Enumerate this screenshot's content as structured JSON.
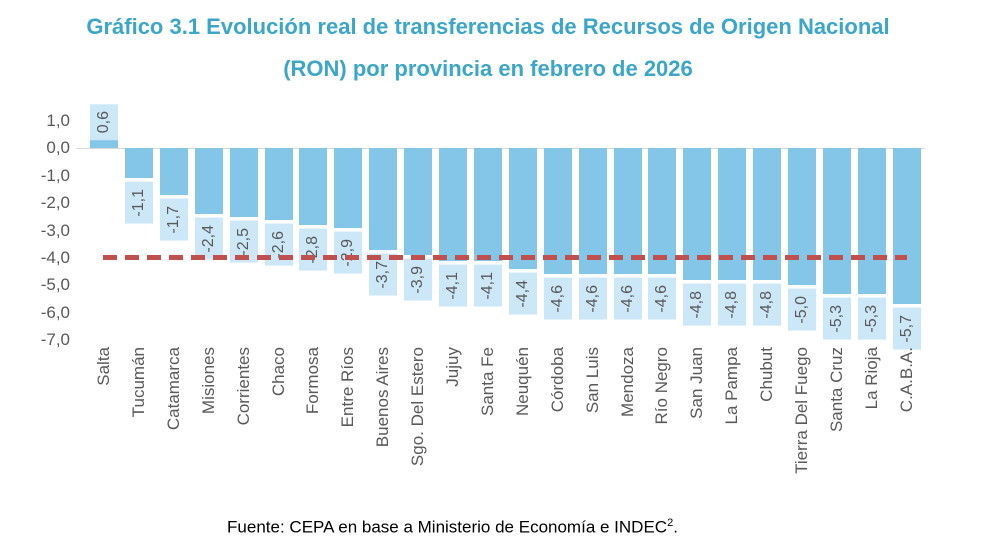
{
  "title": {
    "line1": "Gráfico 3.1 Evolución real de transferencias de Recursos de Origen Nacional",
    "line2": "(RON) por provincia en febrero de 2026"
  },
  "source": {
    "text": "Fuente: CEPA en base a Ministerio de Economía e INDEC",
    "superscript": "2",
    "suffix": "."
  },
  "colors": {
    "title": "#3BA6C9",
    "bar": "#84C6E8",
    "value_label_bg": "#CCE8F8",
    "axis_text": "#595959",
    "reference_line": "#C0504D",
    "zero_line": "#D9D9D9",
    "source_text": "#000000"
  },
  "chart_data": {
    "type": "bar",
    "title": "Gráfico 3.1 Evolución real de transferencias de Recursos de Origen Nacional (RON) por provincia en febrero de 2026",
    "categories": [
      "Salta",
      "Tucumán",
      "Catamarca",
      "Misiones",
      "Corrientes",
      "Chaco",
      "Formosa",
      "Entre Ríos",
      "Buenos Aires",
      "Sgo. Del Estero",
      "Jujuy",
      "Santa Fe",
      "Neuquén",
      "Córdoba",
      "San Luis",
      "Mendoza",
      "Río Negro",
      "San Juan",
      "La Pampa",
      "Chubut",
      "Tierra Del Fuego",
      "Santa Cruz",
      "La Rioja",
      "C.A.B.A."
    ],
    "values": [
      0.6,
      -1.1,
      -1.7,
      -2.4,
      -2.5,
      -2.6,
      -2.8,
      -2.9,
      -3.7,
      -3.9,
      -4.1,
      -4.1,
      -4.4,
      -4.6,
      -4.6,
      -4.6,
      -4.6,
      -4.8,
      -4.8,
      -4.8,
      -5.0,
      -5.3,
      -5.3,
      -5.7
    ],
    "value_labels": [
      "0,6",
      "-1,1",
      "-1,7",
      "-2,4",
      "-2,5",
      "-2,6",
      "-2,8",
      "-2,9",
      "-3,7",
      "-3,9",
      "-4,1",
      "-4,1",
      "-4,4",
      "-4,6",
      "-4,6",
      "-4,6",
      "-4,6",
      "-4,8",
      "-4,8",
      "-4,8",
      "-5,0",
      "-5,3",
      "-5,3",
      "-5,7"
    ],
    "xlabel": "",
    "ylabel": "",
    "y_axis": {
      "ticks": [
        "1,0",
        "0,0",
        "-1,0",
        "-2,0",
        "-3,0",
        "-4,0",
        "-5,0",
        "-6,0",
        "-7,0"
      ],
      "tick_values": [
        1,
        0,
        -1,
        -2,
        -3,
        -4,
        -5,
        -6,
        -7
      ],
      "range": [
        -7,
        1
      ],
      "grid": false
    },
    "reference_line": {
      "value": -4.0,
      "style": "dashed",
      "color": "#C0504D"
    },
    "legend_position": "none",
    "bar_label_position": "outside-end-rotated"
  }
}
